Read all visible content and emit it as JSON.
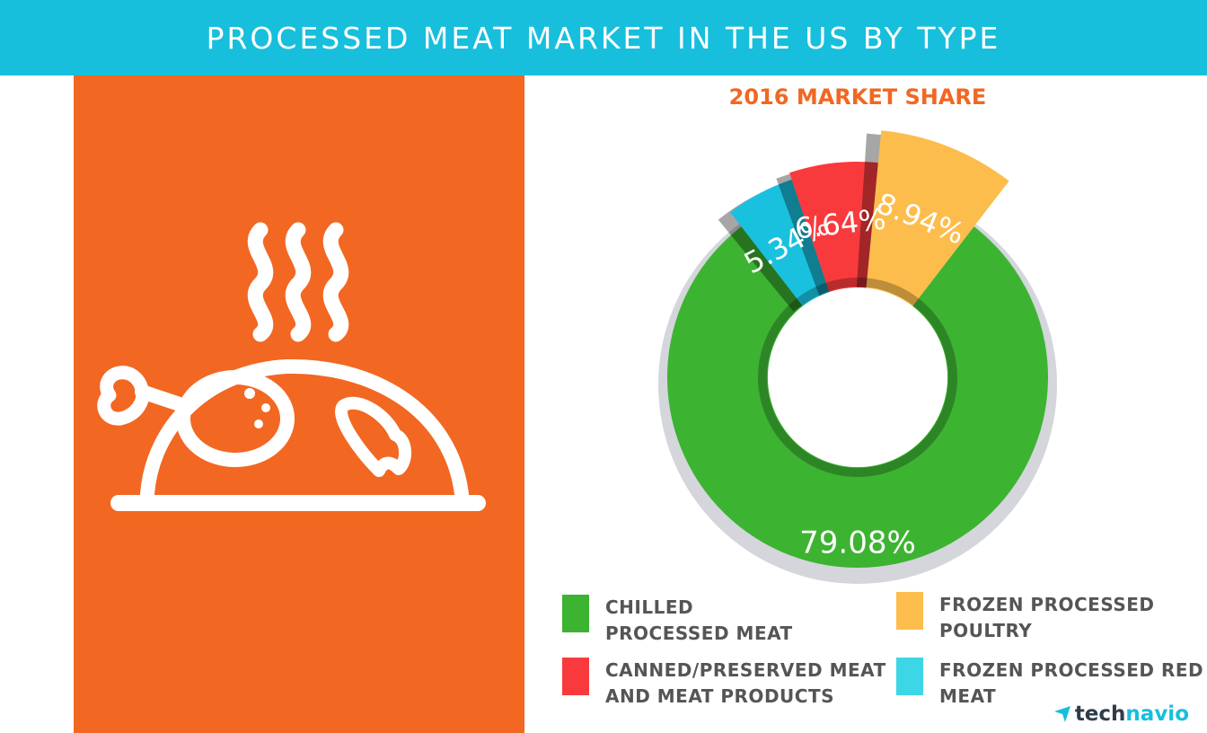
{
  "header": {
    "title": "PROCESSED MEAT MARKET IN THE US BY TYPE"
  },
  "colors": {
    "header_bg": "#17bfdc",
    "panel_bg": "#f26722",
    "icon_stroke": "#ffffff",
    "chart_title": "#f26722",
    "legend_text": "#555555",
    "brand_dark": "#2f3d4a",
    "brand_accent": "#17bfdc"
  },
  "icons": {
    "panel_illustration": "roast-chicken-icon",
    "brand_logo": "technavio-arrow-icon"
  },
  "chart_data": {
    "type": "pie",
    "donut": true,
    "title": "2016 MARKET SHARE",
    "unit": "%",
    "slices": [
      {
        "label": "CHILLED PROCESSED MEAT",
        "value": 79.08,
        "display": "79.08%",
        "color": "#3db332"
      },
      {
        "label": "FROZEN PROCESSED RED MEAT",
        "value": 5.34,
        "display": "5.34%",
        "color": "#1ac1de"
      },
      {
        "label": "CANNED/PRESERVED MEAT AND MEAT PRODUCTS",
        "value": 6.64,
        "display": "6.64%",
        "color": "#f93a3c"
      },
      {
        "label": "FROZEN PROCESSED POULTRY",
        "value": 8.94,
        "display": "8.94%",
        "color": "#fdbd4c"
      }
    ]
  },
  "legend": [
    {
      "line1": "CHILLED",
      "line2": "PROCESSED MEAT",
      "color": "#3db332"
    },
    {
      "line1": "FROZEN PROCESSED",
      "line2": "POULTRY",
      "color": "#fdbd4c"
    },
    {
      "line1": "CANNED/PRESERVED MEAT",
      "line2": "AND MEAT PRODUCTS",
      "color": "#f93a3c"
    },
    {
      "line1": "FROZEN PROCESSED RED",
      "line2": "MEAT",
      "color": "#3dd6e6"
    }
  ],
  "brand": {
    "part1": "tech",
    "part2": "navio"
  }
}
